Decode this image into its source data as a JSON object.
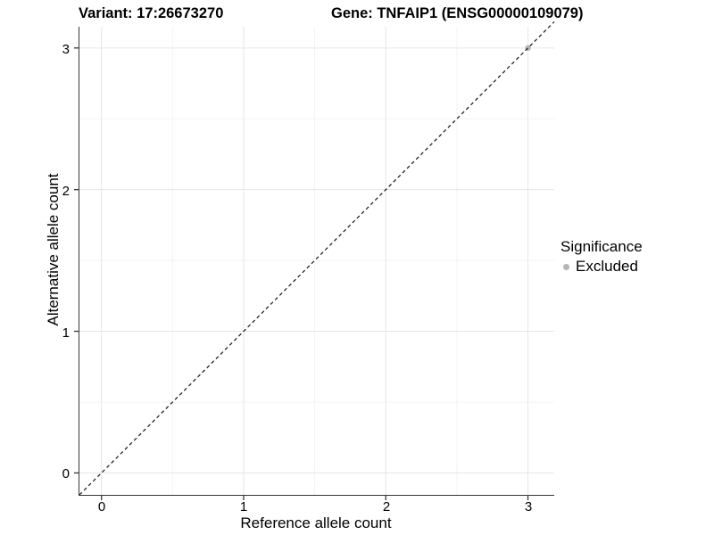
{
  "title": {
    "variant": "Variant: 17:26673270",
    "gene": "Gene: TNFAIP1 (ENSG00000109079)"
  },
  "chart_data": {
    "type": "scatter",
    "xlabel": "Reference allele count",
    "ylabel": "Alternative allele count",
    "x_ticks": [
      0,
      1,
      2,
      3
    ],
    "y_ticks": [
      0,
      1,
      2,
      3
    ],
    "x_minor_ticks": [
      0.5,
      1.5,
      2.5
    ],
    "y_minor_ticks": [
      0.5,
      1.5,
      2.5
    ],
    "xlim": [
      -0.155,
      3.185
    ],
    "ylim": [
      -0.155,
      3.15
    ],
    "grid": "major+minor",
    "points": [
      {
        "x": 3,
        "y": 3,
        "significance": "Excluded",
        "color": "#b5b5b5"
      }
    ],
    "reference_line": {
      "slope": 1,
      "intercept": 0,
      "style": "dashed",
      "color": "#141414"
    },
    "legend": {
      "title": "Significance",
      "position": "right",
      "items": [
        {
          "label": "Excluded",
          "color": "#b5b5b5"
        }
      ]
    }
  },
  "colors": {
    "background": "#ffffff",
    "axis_line": "#383838",
    "grid_major": "#e6e6e6",
    "grid_minor": "#f3f3f3",
    "text": "#000000"
  }
}
